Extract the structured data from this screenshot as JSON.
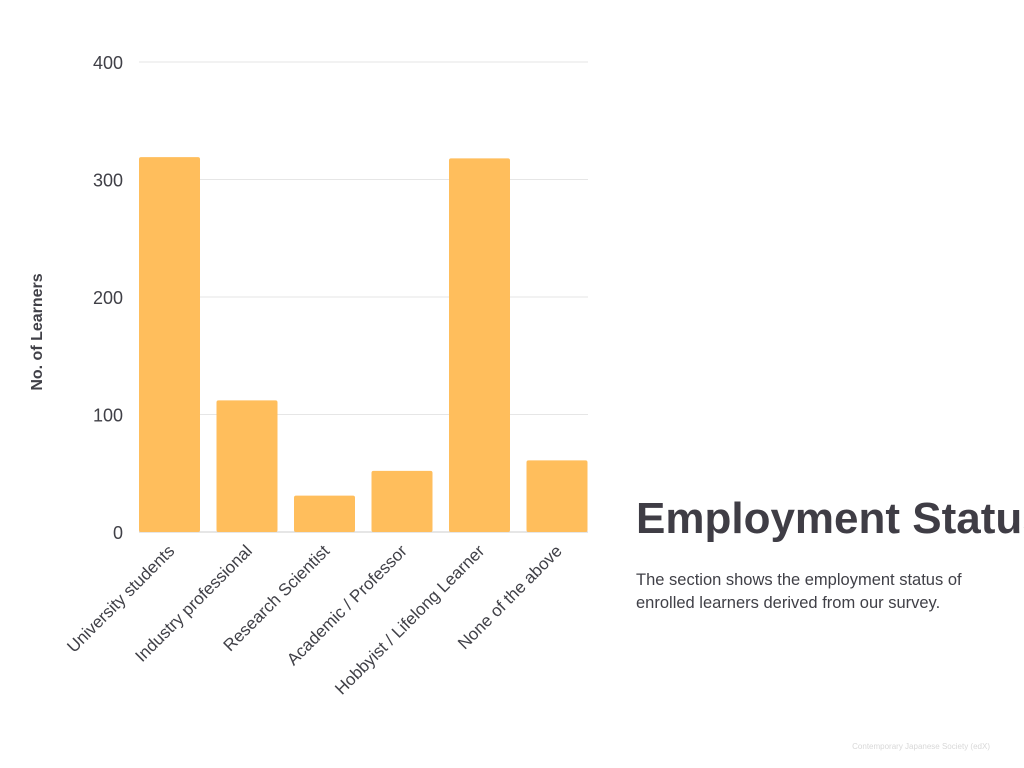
{
  "chart_data": {
    "type": "bar",
    "title": "Employment Status",
    "xlabel": "",
    "ylabel": "No. of Learners",
    "ylim": [
      0,
      400
    ],
    "yticks": [
      0,
      100,
      200,
      300,
      400
    ],
    "grid": true,
    "categories": [
      "University students",
      "Industry professional",
      "Research Scientist",
      "Academic / Professor",
      "Hobbyist / Lifelong Learner",
      "None of the above"
    ],
    "values": [
      319,
      112,
      31,
      52,
      318,
      61
    ],
    "bar_color": "#ffbe5c"
  },
  "description": "The section shows the employment status of enrolled learners derived from our survey.",
  "footer": "Contemporary Japanese Society (edX)"
}
